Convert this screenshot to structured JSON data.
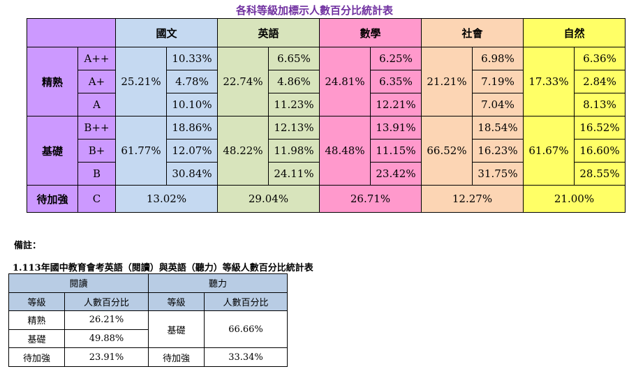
{
  "title": "各科等級加標示人數百分比統計表",
  "main_table": {
    "subjects": [
      "國文",
      "英語",
      "數學",
      "社會",
      "自然"
    ],
    "groups": [
      {
        "label": "精熟",
        "levels": [
          "A++",
          "A+",
          "A"
        ],
        "totals": [
          "25.21%",
          "22.74%",
          "24.81%",
          "21.21%",
          "17.33%"
        ],
        "values": [
          [
            "10.33%",
            "6.65%",
            "6.25%",
            "6.98%",
            "6.36%"
          ],
          [
            "4.78%",
            "4.86%",
            "6.35%",
            "7.19%",
            "2.84%"
          ],
          [
            "10.10%",
            "11.23%",
            "12.21%",
            "7.04%",
            "8.13%"
          ]
        ]
      },
      {
        "label": "基礎",
        "levels": [
          "B++",
          "B+",
          "B"
        ],
        "totals": [
          "61.77%",
          "48.22%",
          "48.48%",
          "66.52%",
          "61.67%"
        ],
        "values": [
          [
            "18.86%",
            "12.13%",
            "13.91%",
            "18.54%",
            "16.52%"
          ],
          [
            "12.07%",
            "11.98%",
            "11.15%",
            "16.23%",
            "16.60%"
          ],
          [
            "30.84%",
            "24.11%",
            "23.42%",
            "31.75%",
            "28.55%"
          ]
        ]
      }
    ],
    "weak": {
      "label": "待加強",
      "level": "C",
      "values": [
        "13.02%",
        "29.04%",
        "26.71%",
        "12.27%",
        "21.00%"
      ]
    }
  },
  "note": {
    "heading": "備註：",
    "item_title": "1.113年國中教育會考英語（閱讀）與英語（聽力）等級人數百分比統計表",
    "table": {
      "headers": [
        "閱讀",
        "聽力"
      ],
      "subheaders": [
        "等級",
        "人數百分比",
        "等級",
        "人數百分比"
      ],
      "reading": [
        [
          "精熟",
          "26.21%"
        ],
        [
          "基礎",
          "49.88%"
        ],
        [
          "待加強",
          "23.91%"
        ]
      ],
      "listening": [
        [
          "基礎",
          "66.66%"
        ],
        [
          "待加強",
          "33.34%"
        ]
      ]
    }
  }
}
